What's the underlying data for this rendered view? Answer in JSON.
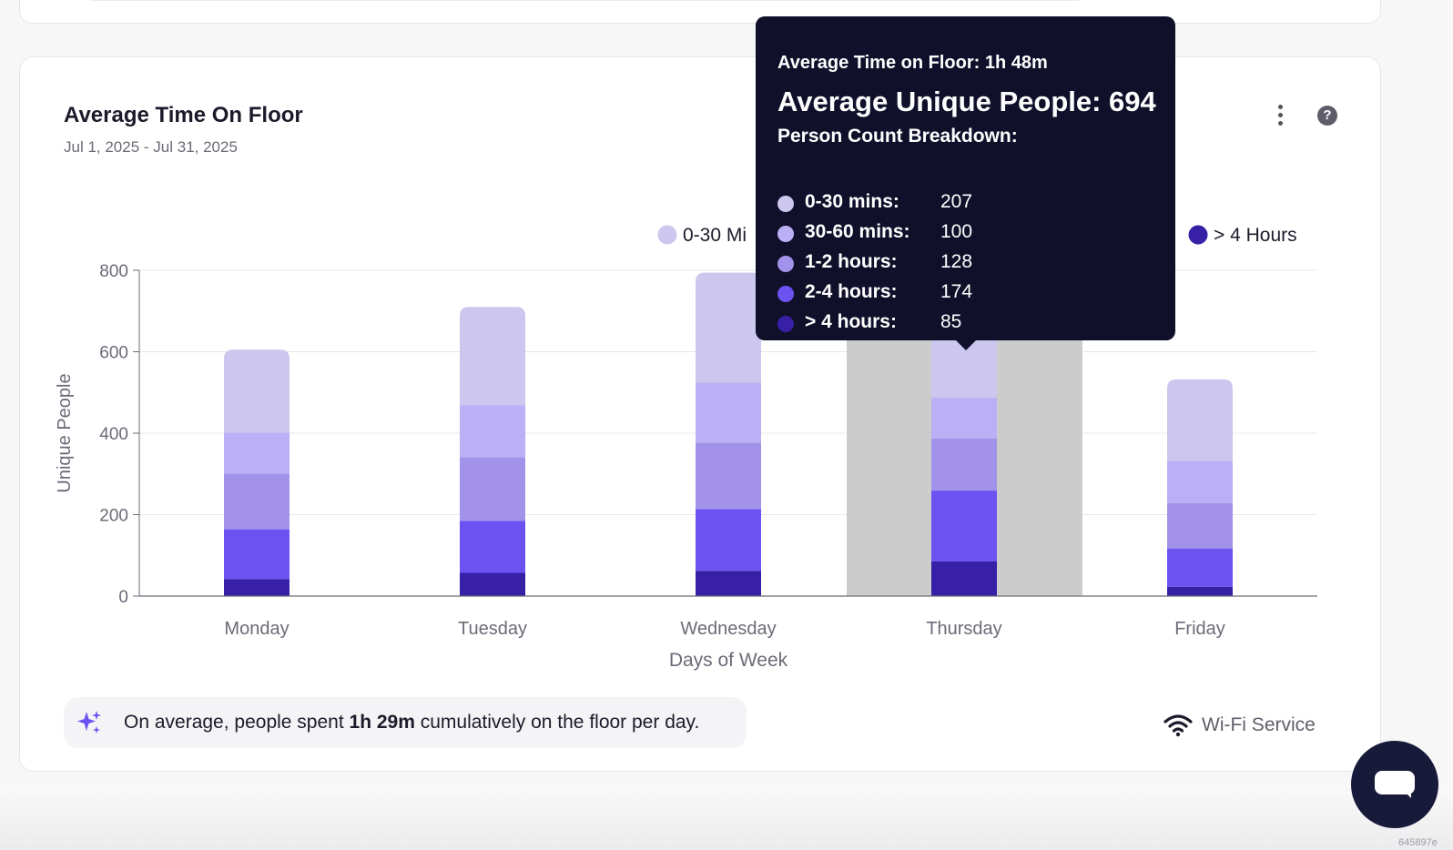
{
  "card": {
    "title": "Average Time On Floor",
    "date_range": "Jul 1, 2025 - Jul 31, 2025",
    "help_label": "?"
  },
  "insight": {
    "prefix": "On average, people spent ",
    "value": "1h 29m",
    "suffix": " cumulatively on the floor per day."
  },
  "source": {
    "label": "Wi-Fi Service",
    "icon": "wifi-icon"
  },
  "build_id": "645897e",
  "tooltip": {
    "time_line": "Average Time on Floor: 1h 48m",
    "people_line": "Average Unique People: 694",
    "breakdown_title": "Person Count Breakdown:",
    "rows": [
      {
        "label": "0-30 mins:",
        "value": "207",
        "color": "#cdc6ee"
      },
      {
        "label": "30-60 mins:",
        "value": "100",
        "color": "#bbb0f5"
      },
      {
        "label": "1-2 hours:",
        "value": "128",
        "color": "#a292ea"
      },
      {
        "label": "2-4 hours:",
        "value": "174",
        "color": "#6d52f2"
      },
      {
        "label": "> 4 hours:",
        "value": "85",
        "color": "#3720a6"
      }
    ]
  },
  "chart_data": {
    "type": "bar",
    "stacked": true,
    "categories": [
      "Monday",
      "Tuesday",
      "Wednesday",
      "Thursday",
      "Friday"
    ],
    "series": [
      {
        "name": "> 4 Hours",
        "color": "#3720a6",
        "values": [
          42,
          57,
          62,
          85,
          23
        ]
      },
      {
        "name": "2-4 Hours",
        "color": "#6d52f2",
        "values": [
          122,
          128,
          152,
          174,
          94
        ]
      },
      {
        "name": "1-2 Hours",
        "color": "#a292ea",
        "values": [
          137,
          156,
          163,
          128,
          111
        ]
      },
      {
        "name": "30-60 Mins",
        "color": "#bbb0f5",
        "values": [
          100,
          128,
          147,
          100,
          104
        ]
      },
      {
        "name": "0-30 Mins",
        "color": "#cdc6ee",
        "values": [
          204,
          241,
          270,
          207,
          200
        ]
      }
    ],
    "legend_visible": [
      "0-30 Mi",
      "> 4 Hours"
    ],
    "xlabel": "Days of Week",
    "ylabel": "Unique People",
    "ylim": [
      0,
      800
    ],
    "yticks": [
      0,
      200,
      400,
      600,
      800
    ],
    "highlighted_category": "Thursday",
    "grid": true
  }
}
